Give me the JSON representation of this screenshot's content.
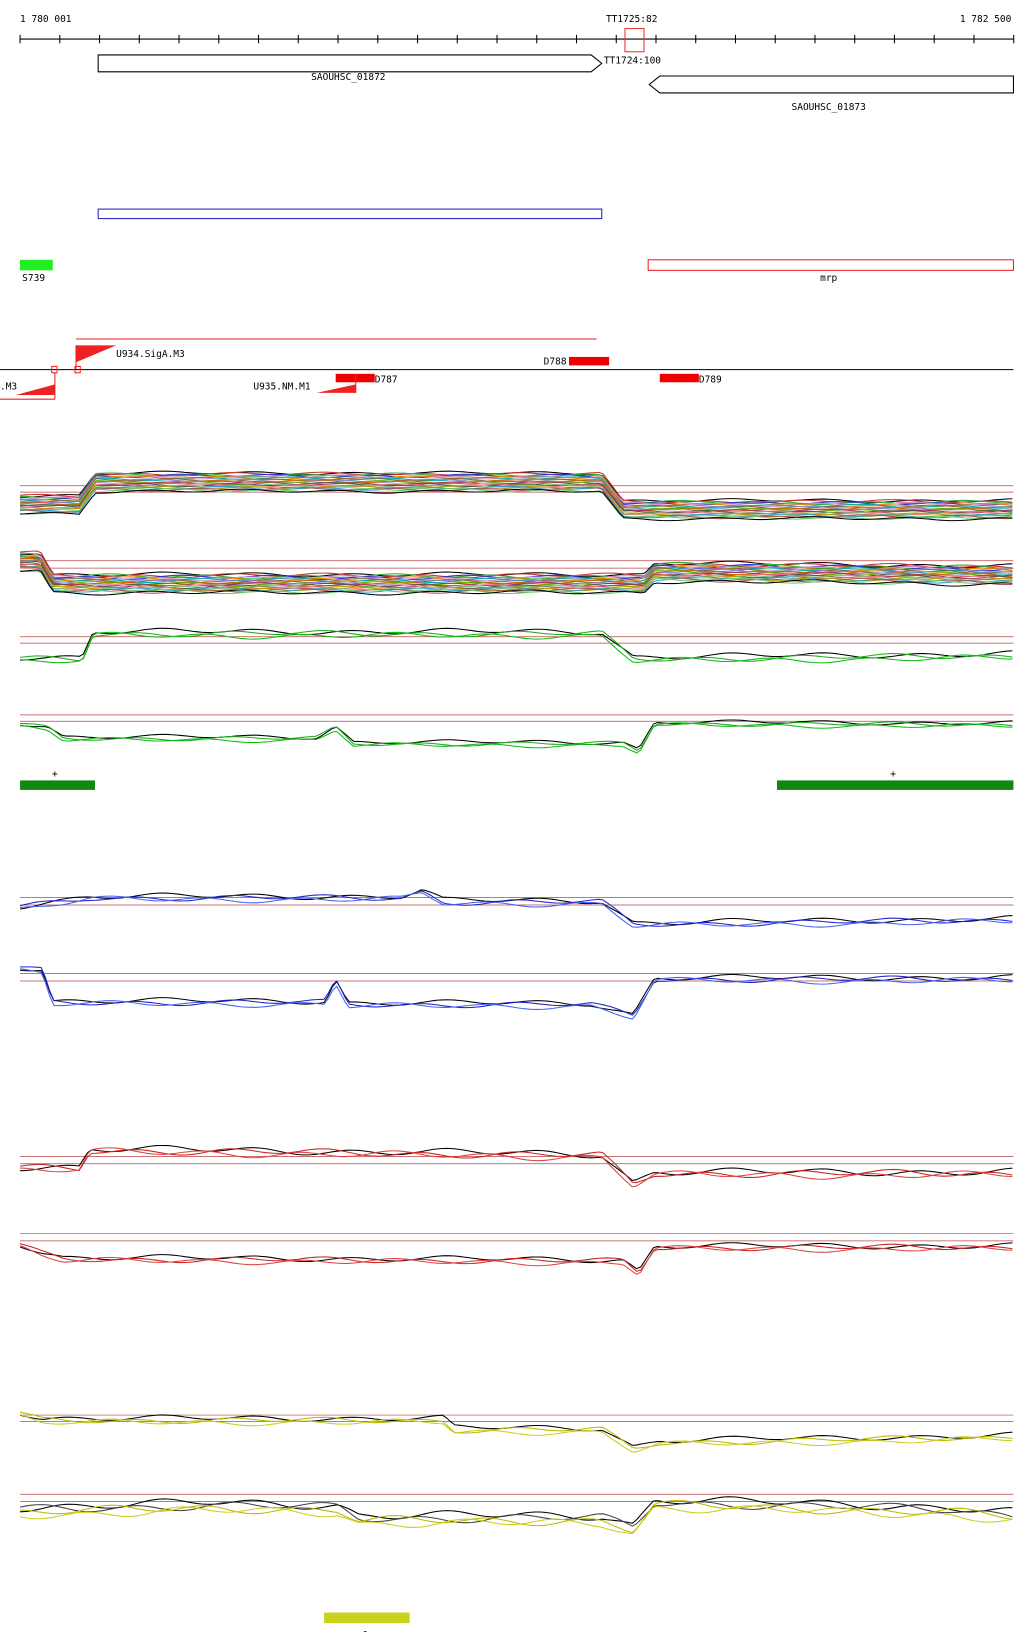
{
  "ruler": {
    "start": "1 780 001",
    "end": "1 782 500",
    "marker": "TT1725:82"
  },
  "genes": [
    {
      "label": "SAOUHSC_01872"
    },
    {
      "label": "SAOUHSC_01873"
    }
  ],
  "terminators": [
    {
      "label": "TT1724:100"
    }
  ],
  "features": [
    {
      "label": "S739"
    },
    {
      "label": "mrp"
    }
  ],
  "promoters": [
    {
      "label": "U934.SigA.M3"
    },
    {
      "label": ".M3"
    },
    {
      "label": "U935.NM.M1"
    }
  ],
  "segments": [
    {
      "label": "D788"
    },
    {
      "label": "D787"
    },
    {
      "label": "D789"
    }
  ],
  "strand_marks": [
    "+",
    "+",
    "-"
  ]
}
